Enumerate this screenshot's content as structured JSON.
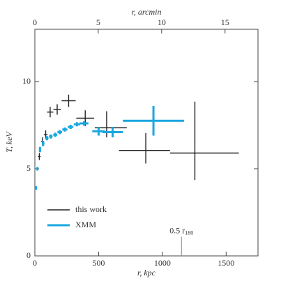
{
  "chart_data": {
    "type": "errorbar",
    "xlabel": "r, kpc",
    "x2label": "r, arcmin",
    "ylabel": "T, keV",
    "xlim": [
      0,
      1750
    ],
    "xticks": [
      0,
      500,
      1000,
      1500
    ],
    "x2lim": [
      0,
      17.6
    ],
    "x2ticks": [
      0,
      5,
      10,
      15
    ],
    "ylim": [
      0,
      13
    ],
    "yticks": [
      0,
      5,
      10
    ],
    "legend": "lower left",
    "annotation": {
      "text": "0.5 r",
      "subscript": "180",
      "x": 1150,
      "y": 1.1
    },
    "series": [
      {
        "name": "this work",
        "color": "#222222",
        "x": [
          35,
          60,
          85,
          120,
          175,
          265,
          395,
          563,
          870,
          1255
        ],
        "xerr": [
          [
            10,
            10
          ],
          [
            12,
            12
          ],
          [
            15,
            15
          ],
          [
            25,
            25
          ],
          [
            30,
            30
          ],
          [
            55,
            55
          ],
          [
            70,
            70
          ],
          [
            93,
            158
          ],
          [
            210,
            190
          ],
          [
            195,
            345
          ]
        ],
        "y": [
          5.7,
          6.55,
          6.95,
          8.25,
          8.4,
          8.9,
          7.9,
          7.35,
          6.05,
          5.9
        ],
        "yerr": [
          [
            0.2,
            0.2
          ],
          [
            0.25,
            0.25
          ],
          [
            0.25,
            0.25
          ],
          [
            0.3,
            0.3
          ],
          [
            0.3,
            0.3
          ],
          [
            0.35,
            0.35
          ],
          [
            0.45,
            0.45
          ],
          [
            0.55,
            0.95
          ],
          [
            0.75,
            1.0
          ],
          [
            1.55,
            2.95
          ]
        ]
      },
      {
        "name": "XMM",
        "color": "#1aa7e0",
        "x": [
          8,
          20,
          40,
          65,
          95,
          125,
          160,
          195,
          235,
          280,
          330,
          385,
          500,
          610,
          930
        ],
        "xerr": [
          [
            5,
            5
          ],
          [
            6,
            6
          ],
          [
            8,
            8
          ],
          [
            10,
            10
          ],
          [
            12,
            12
          ],
          [
            14,
            14
          ],
          [
            16,
            16
          ],
          [
            18,
            18
          ],
          [
            20,
            20
          ],
          [
            22,
            22
          ],
          [
            25,
            25
          ],
          [
            35,
            35
          ],
          [
            50,
            50
          ],
          [
            80,
            80
          ],
          [
            240,
            240
          ]
        ],
        "y": [
          3.9,
          5.0,
          6.1,
          6.45,
          6.75,
          6.85,
          6.95,
          7.1,
          7.25,
          7.4,
          7.55,
          7.6,
          7.15,
          7.1,
          7.75
        ],
        "yerr": [
          [
            0.1,
            0.1
          ],
          [
            0.1,
            0.1
          ],
          [
            0.15,
            0.15
          ],
          [
            0.15,
            0.15
          ],
          [
            0.12,
            0.12
          ],
          [
            0.12,
            0.12
          ],
          [
            0.12,
            0.12
          ],
          [
            0.12,
            0.12
          ],
          [
            0.12,
            0.12
          ],
          [
            0.12,
            0.12
          ],
          [
            0.12,
            0.12
          ],
          [
            0.12,
            0.12
          ],
          [
            0.25,
            0.25
          ],
          [
            0.3,
            0.3
          ],
          [
            0.85,
            0.85
          ]
        ]
      }
    ]
  }
}
